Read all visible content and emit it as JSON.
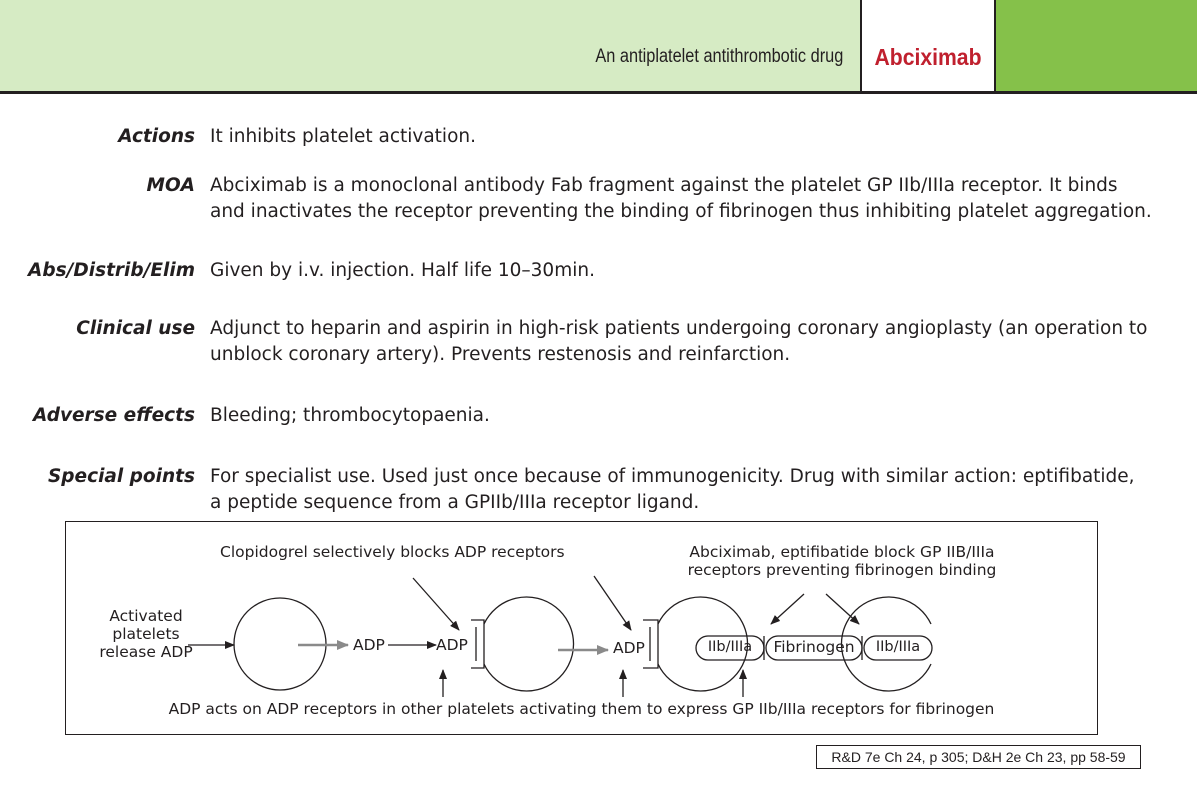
{
  "header": {
    "subtitle": "An antiplatelet antithrombotic drug",
    "title": "Abciximab",
    "colors": {
      "light_band": "#d6ebc4",
      "dark_band": "#85c14a",
      "title": "#c0202e"
    }
  },
  "sections": [
    {
      "label": "Actions",
      "lines": [
        "It inhibits platelet activation."
      ]
    },
    {
      "label": "MOA",
      "lines": [
        "Abciximab is a monoclonal antibody Fab fragment against the platelet GP IIb/IIIa receptor. It binds",
        "and inactivates the receptor preventing the binding of fibrinogen thus inhibiting platelet aggregation."
      ]
    },
    {
      "label": "Abs/Distrib/Elim",
      "lines": [
        "Given by i.v. injection.  Half life 10–30min."
      ]
    },
    {
      "label": "Clinical use",
      "lines": [
        "Adjunct to heparin and aspirin in high-risk patients undergoing coronary angioplasty (an operation to",
        "unblock coronary artery).  Prevents restenosis and reinfarction."
      ]
    },
    {
      "label": "Adverse effects",
      "lines": [
        "Bleeding; thrombocytopaenia."
      ]
    },
    {
      "label": "Special points",
      "lines": [
        "For specialist use. Used just once because of immunogenicity.  Drug with similar action: eptifibatide,",
        "a peptide sequence from a GPIIb/IIIa receptor ligand."
      ]
    }
  ],
  "diagram": {
    "activated_lines": [
      "Activated",
      "platelets",
      "release ADP"
    ],
    "clopidogrel": "Clopidogrel selectively blocks ADP receptors",
    "abciximab_lines": [
      "Abciximab, eptifibatide block GP IIB/IIIa",
      "receptors preventing fibrinogen binding"
    ],
    "adp": "ADP",
    "adp_receptor_1": "ADP",
    "adp_receptor_2": "ADP",
    "gp_left": "IIb/IIIa",
    "fibrinogen": "Fibrinogen",
    "gp_right": "IIb/IIIa",
    "bottom": "ADP acts on ADP receptors in other platelets activating them to express GP IIb/IIIa receptors for fibrinogen"
  },
  "reference": "R&D 7e Ch 24, p 305; D&H 2e Ch 23, pp 58-59"
}
